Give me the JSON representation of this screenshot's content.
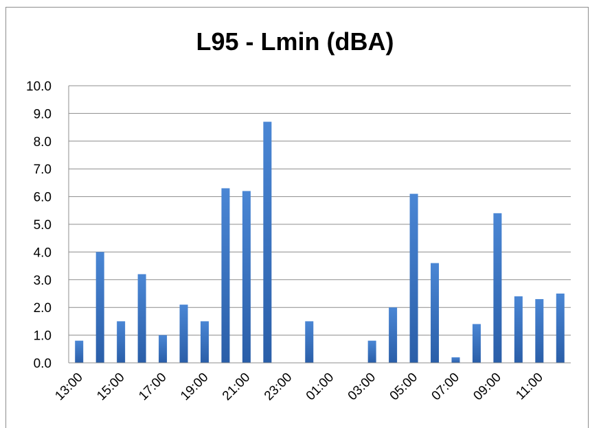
{
  "chart_data": {
    "type": "bar",
    "title": "L95 - Lmin (dBA)",
    "xlabel": "",
    "ylabel": "",
    "ylim": [
      0,
      10
    ],
    "yticks": [
      "0.0",
      "1.0",
      "2.0",
      "3.0",
      "4.0",
      "5.0",
      "6.0",
      "7.0",
      "8.0",
      "9.0",
      "10.0"
    ],
    "grid": true,
    "legend": "none",
    "color": "#3a74c2",
    "categories": [
      "13:00",
      "14:00",
      "15:00",
      "16:00",
      "17:00",
      "18:00",
      "19:00",
      "20:00",
      "21:00",
      "22:00",
      "23:00",
      "00:00",
      "01:00",
      "02:00",
      "03:00",
      "04:00",
      "05:00",
      "06:00",
      "07:00",
      "08:00",
      "09:00",
      "10:00",
      "11:00",
      "12:00"
    ],
    "xtick_labels": [
      "13:00",
      "15:00",
      "17:00",
      "19:00",
      "21:00",
      "23:00",
      "01:00",
      "03:00",
      "05:00",
      "07:00",
      "09:00",
      "11:00"
    ],
    "values": [
      0.8,
      4.0,
      1.5,
      3.2,
      1.0,
      2.1,
      1.5,
      6.3,
      6.2,
      8.7,
      0,
      1.5,
      0,
      0,
      0.8,
      2.0,
      6.1,
      3.6,
      0.2,
      1.4,
      5.4,
      2.4,
      2.3,
      2.5
    ]
  }
}
